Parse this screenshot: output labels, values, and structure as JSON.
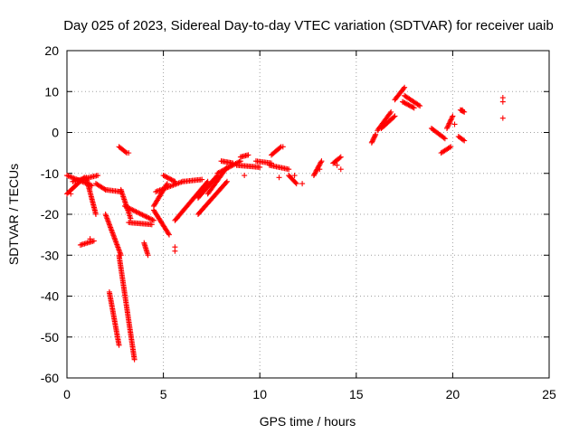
{
  "chart_data": {
    "type": "scatter",
    "title": "Day 025 of 2023, Sidereal Day-to-day VTEC variation (SDTVAR) for receiver uaib",
    "xlabel": "GPS time / hours",
    "ylabel": "SDTVAR / TECUs",
    "xlim": [
      0,
      25
    ],
    "ylim": [
      -60,
      20
    ],
    "xticks": [
      0,
      5,
      10,
      15,
      20,
      25
    ],
    "yticks": [
      20,
      10,
      0,
      -10,
      -20,
      -30,
      -40,
      -50,
      -60
    ],
    "xtick_labels": [
      "0",
      "5",
      "10",
      "15",
      "20",
      "25"
    ],
    "ytick_labels": [
      "20",
      "10",
      "0",
      "-10",
      "-20",
      "-30",
      "-40",
      "-50",
      "-60"
    ],
    "grid": true,
    "marker": "+",
    "color": "#ff0000",
    "series": [
      {
        "name": "SDTVAR",
        "segments": [
          {
            "x0": 0.0,
            "x1": 0.9,
            "y0": -15.0,
            "y1": -11.0
          },
          {
            "x0": 0.0,
            "x1": 1.3,
            "y0": -10.5,
            "y1": -13.0
          },
          {
            "x0": 0.3,
            "x1": 1.6,
            "y0": -12.0,
            "y1": -10.5
          },
          {
            "x0": 1.0,
            "x1": 1.5,
            "y0": -11.0,
            "y1": -20.0
          },
          {
            "x0": 1.5,
            "x1": 2.0,
            "y0": -12.5,
            "y1": -14.0
          },
          {
            "x0": 0.7,
            "x1": 1.4,
            "y0": -27.5,
            "y1": -26.5
          },
          {
            "x0": 2.0,
            "x1": 2.8,
            "y0": -14.0,
            "y1": -14.5
          },
          {
            "x0": 2.0,
            "x1": 2.8,
            "y0": -20.0,
            "y1": -30.0
          },
          {
            "x0": 2.2,
            "x1": 2.7,
            "y0": -39.0,
            "y1": -52.0
          },
          {
            "x0": 2.7,
            "x1": 3.5,
            "y0": -30.0,
            "y1": -55.5
          },
          {
            "x0": 2.7,
            "x1": 3.1,
            "y0": -3.5,
            "y1": -5.0
          },
          {
            "x0": 2.8,
            "x1": 3.3,
            "y0": -14.0,
            "y1": -21.0
          },
          {
            "x0": 3.0,
            "x1": 4.5,
            "y0": -18.0,
            "y1": -21.5
          },
          {
            "x0": 3.2,
            "x1": 4.4,
            "y0": -22.0,
            "y1": -22.5
          },
          {
            "x0": 4.0,
            "x1": 4.2,
            "y0": -27.0,
            "y1": -30.0
          },
          {
            "x0": 4.5,
            "x1": 5.3,
            "y0": -19.0,
            "y1": -25.0
          },
          {
            "x0": 4.5,
            "x1": 5.2,
            "y0": -18.0,
            "y1": -12.5
          },
          {
            "x0": 4.6,
            "x1": 6.0,
            "y0": -14.5,
            "y1": -12.0
          },
          {
            "x0": 5.0,
            "x1": 5.6,
            "y0": -10.5,
            "y1": -12.0
          },
          {
            "x0": 5.6,
            "x1": 7.3,
            "y0": -21.5,
            "y1": -12.0
          },
          {
            "x0": 6.0,
            "x1": 7.0,
            "y0": -12.0,
            "y1": -11.5
          },
          {
            "x0": 6.8,
            "x1": 7.8,
            "y0": -16.0,
            "y1": -10.5
          },
          {
            "x0": 6.8,
            "x1": 8.3,
            "y0": -20.0,
            "y1": -12.0
          },
          {
            "x0": 7.3,
            "x1": 8.3,
            "y0": -15.0,
            "y1": -8.5
          },
          {
            "x0": 7.8,
            "x1": 9.0,
            "y0": -10.0,
            "y1": -7.0
          },
          {
            "x0": 8.0,
            "x1": 8.6,
            "y0": -7.0,
            "y1": -7.5
          },
          {
            "x0": 8.8,
            "x1": 10.0,
            "y0": -8.0,
            "y1": -8.5
          },
          {
            "x0": 9.0,
            "x1": 9.4,
            "y0": -6.0,
            "y1": -5.5
          },
          {
            "x0": 9.8,
            "x1": 10.6,
            "y0": -7.0,
            "y1": -7.5
          },
          {
            "x0": 10.5,
            "x1": 11.5,
            "y0": -8.0,
            "y1": -9.0
          },
          {
            "x0": 10.6,
            "x1": 11.1,
            "y0": -5.5,
            "y1": -3.5
          },
          {
            "x0": 11.5,
            "x1": 11.9,
            "y0": -10.5,
            "y1": -12.5
          },
          {
            "x0": 12.8,
            "x1": 13.2,
            "y0": -10.5,
            "y1": -7.0
          },
          {
            "x0": 13.8,
            "x1": 14.2,
            "y0": -7.5,
            "y1": -6.0
          },
          {
            "x0": 15.8,
            "x1": 16.0,
            "y0": -2.5,
            "y1": -0.5
          },
          {
            "x0": 16.1,
            "x1": 16.8,
            "y0": 0.5,
            "y1": 5.0
          },
          {
            "x0": 16.3,
            "x1": 17.0,
            "y0": 1.0,
            "y1": 4.0
          },
          {
            "x0": 17.0,
            "x1": 17.5,
            "y0": 8.0,
            "y1": 11.0
          },
          {
            "x0": 17.5,
            "x1": 18.3,
            "y0": 9.0,
            "y1": 6.5
          },
          {
            "x0": 17.4,
            "x1": 18.0,
            "y0": 7.5,
            "y1": 6.0
          },
          {
            "x0": 18.9,
            "x1": 19.6,
            "y0": 1.0,
            "y1": -1.5
          },
          {
            "x0": 19.4,
            "x1": 19.9,
            "y0": -5.0,
            "y1": -3.5
          },
          {
            "x0": 19.7,
            "x1": 20.0,
            "y0": 1.0,
            "y1": 4.0
          },
          {
            "x0": 20.3,
            "x1": 20.6,
            "y0": -1.0,
            "y1": -2.0
          },
          {
            "x0": 20.4,
            "x1": 20.6,
            "y0": 5.5,
            "y1": 5.0
          }
        ],
        "points": [
          {
            "x": 0.2,
            "y": -15.0
          },
          {
            "x": 1.2,
            "y": -26.0
          },
          {
            "x": 3.2,
            "y": -5.0
          },
          {
            "x": 5.6,
            "y": -28.0
          },
          {
            "x": 5.6,
            "y": -29.0
          },
          {
            "x": 5.7,
            "y": -21.0
          },
          {
            "x": 9.2,
            "y": -10.5
          },
          {
            "x": 11.0,
            "y": -11.0
          },
          {
            "x": 11.2,
            "y": -3.5
          },
          {
            "x": 11.8,
            "y": -10.5
          },
          {
            "x": 12.2,
            "y": -12.5
          },
          {
            "x": 13.1,
            "y": -9.0
          },
          {
            "x": 13.9,
            "y": -7.5
          },
          {
            "x": 14.2,
            "y": -9.0
          },
          {
            "x": 14.0,
            "y": -8.0
          },
          {
            "x": 20.1,
            "y": 2.0
          },
          {
            "x": 20.5,
            "y": 5.5
          },
          {
            "x": 22.6,
            "y": 8.5
          },
          {
            "x": 22.6,
            "y": 7.5
          },
          {
            "x": 22.6,
            "y": 3.5
          }
        ]
      }
    ]
  }
}
